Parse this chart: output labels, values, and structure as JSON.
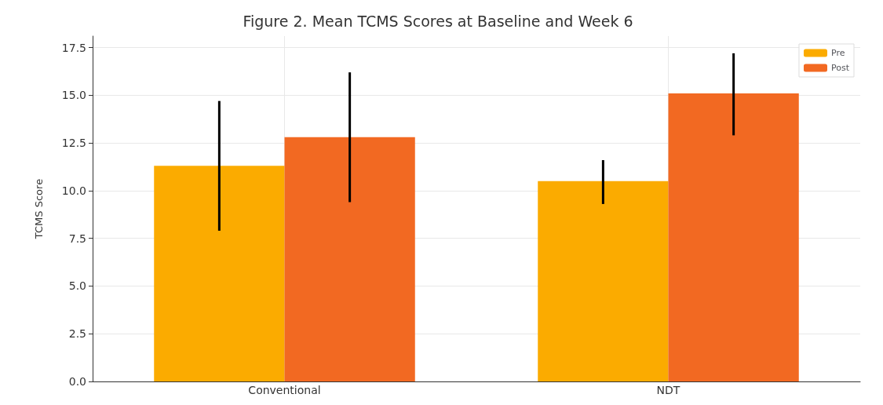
{
  "chart_data": {
    "type": "bar",
    "title": "Figure 2. Mean TCMS Scores at Baseline and Week 6",
    "ylabel": "TCMS Score",
    "categories": [
      "Conventional",
      "NDT"
    ],
    "series": [
      {
        "name": "Pre",
        "color": "#fbab00",
        "values": [
          11.3,
          10.5
        ],
        "errors": [
          [
            7.9,
            14.7
          ],
          [
            9.3,
            11.6
          ]
        ]
      },
      {
        "name": "Post",
        "color": "#f26922",
        "values": [
          12.8,
          15.1
        ],
        "errors": [
          [
            9.4,
            16.2
          ],
          [
            12.9,
            17.2
          ]
        ]
      }
    ],
    "ylim": [
      0,
      18.1
    ],
    "yticks": [
      {
        "value": 0,
        "label": "0.0"
      },
      2.5,
      {
        "value": 5,
        "label": "5.0"
      },
      7.5,
      {
        "value": 10,
        "label": "10.0"
      },
      12.5,
      {
        "value": 15,
        "label": "15.0"
      },
      17.5
    ],
    "grid": true,
    "legend": "top right"
  }
}
